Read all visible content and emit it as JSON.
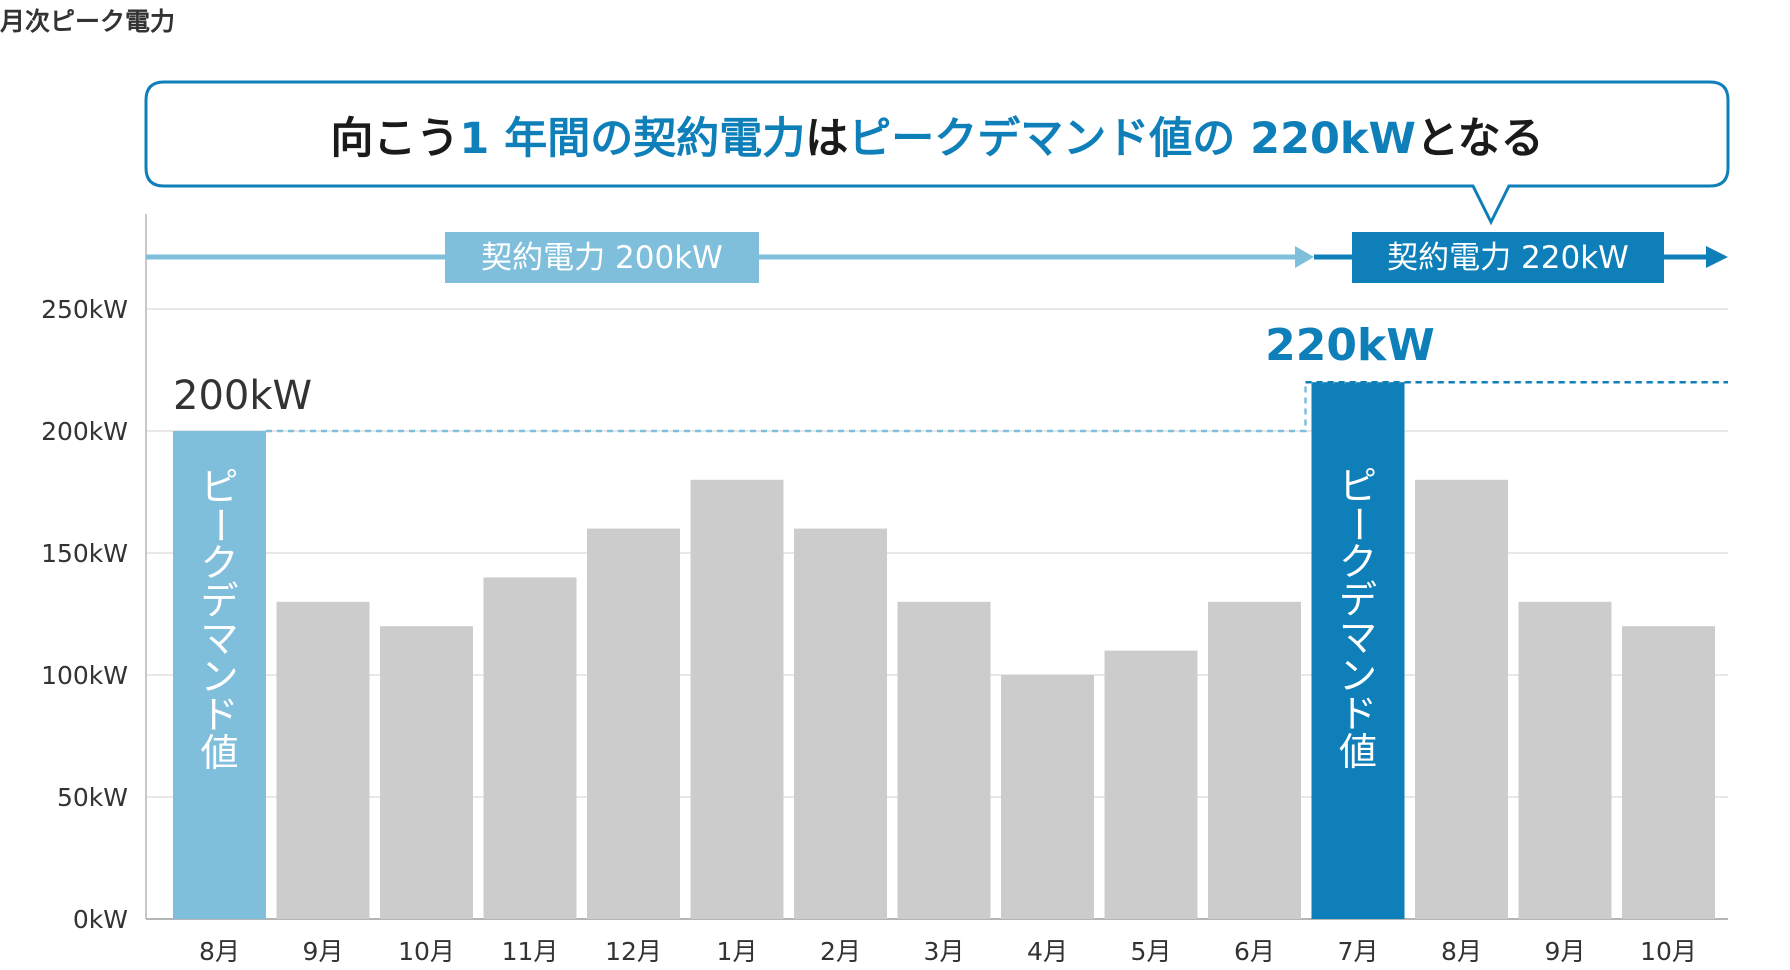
{
  "title": "月次ピーク電力",
  "callout": {
    "part1": "向こう",
    "part2": "1 年間の契約電力",
    "part3": "は",
    "part4": "ピークデマンド値の 220kW",
    "part5": "となる"
  },
  "contract_bands": [
    {
      "label": "契約電力 200kW",
      "value": 200
    },
    {
      "label": "契約電力 220kW",
      "value": 220
    }
  ],
  "peak_labels": [
    "200kW",
    "220kW"
  ],
  "bar_inner_label": "ピークデマンド値",
  "colors": {
    "light_blue": "#7fbfdc",
    "dark_blue": "#0e7fb8",
    "gray_bar": "#cccccc",
    "grid": "#e0e0e0",
    "text": "#333333"
  },
  "chart_data": {
    "type": "bar",
    "categories": [
      "8月",
      "9月",
      "10月",
      "11月",
      "12月",
      "1月",
      "2月",
      "3月",
      "4月",
      "5月",
      "6月",
      "7月",
      "8月",
      "9月",
      "10月"
    ],
    "values": [
      200,
      130,
      120,
      140,
      160,
      180,
      160,
      130,
      100,
      110,
      130,
      220,
      180,
      130,
      120
    ],
    "highlight": {
      "0": "light",
      "11": "dark"
    },
    "yticks": [
      "0kW",
      "50kW",
      "100kW",
      "150kW",
      "200kW",
      "250kW"
    ],
    "ytick_values": [
      0,
      50,
      100,
      150,
      200,
      250
    ],
    "ylim": [
      0,
      250
    ],
    "grid": true
  }
}
